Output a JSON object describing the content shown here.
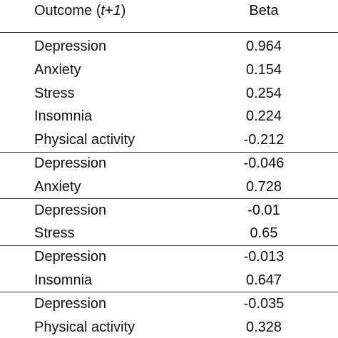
{
  "header": {
    "outcome": [
      "Outcome (",
      "t+1",
      ")"
    ],
    "beta": "Beta"
  },
  "groups": [
    {
      "rows": [
        [
          "Depression",
          0.964
        ],
        [
          "Anxiety",
          0.154
        ],
        [
          "Stress",
          0.254
        ],
        [
          "Insomnia",
          0.224
        ],
        [
          "Physical activity",
          -0.212
        ]
      ]
    },
    {
      "rows": [
        [
          "Depression",
          -0.046
        ],
        [
          "Anxiety",
          0.728
        ]
      ]
    },
    {
      "rows": [
        [
          "Depression",
          -0.01
        ],
        [
          "Stress",
          0.65
        ]
      ]
    },
    {
      "rows": [
        [
          "Depression",
          -0.013
        ],
        [
          "Insomnia",
          0.647
        ]
      ]
    },
    {
      "rows": [
        [
          "Depression",
          -0.035
        ],
        [
          "Physical activity",
          0.328
        ]
      ]
    }
  ]
}
